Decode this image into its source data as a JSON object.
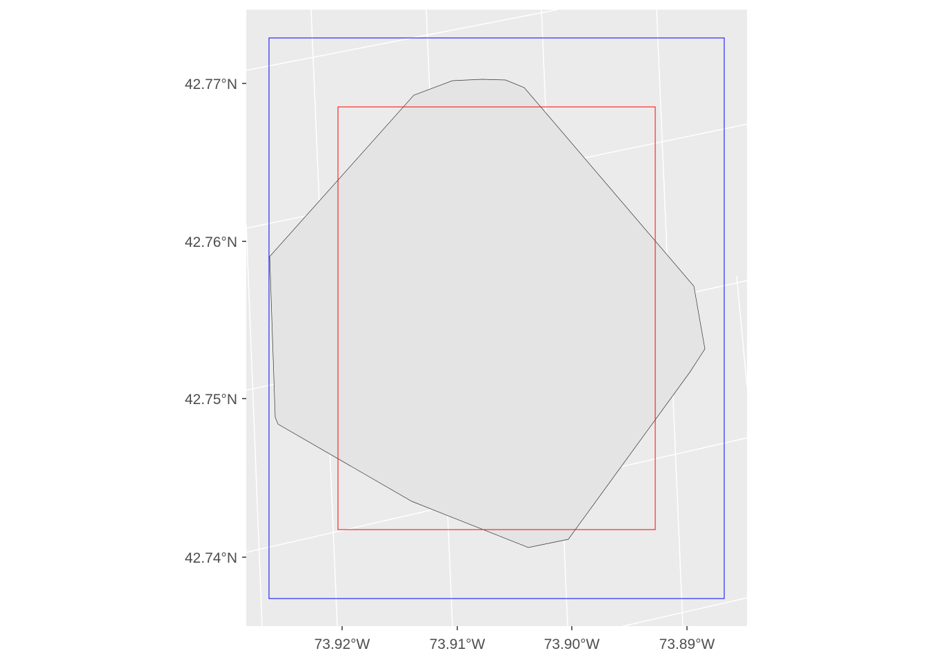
{
  "map": {
    "type": "sf-map",
    "panel_background": "#EBEBEB",
    "graticule_color": "#FFFFFF",
    "y_axis": {
      "ticks": [
        {
          "value": 42.77,
          "label": "42.77°N"
        },
        {
          "value": 42.76,
          "label": "42.76°N"
        },
        {
          "value": 42.75,
          "label": "42.75°N"
        },
        {
          "value": 42.74,
          "label": "42.74°N"
        }
      ]
    },
    "x_axis": {
      "ticks": [
        {
          "value": -73.92,
          "label": "73.92°W"
        },
        {
          "value": -73.91,
          "label": "73.91°W"
        },
        {
          "value": -73.9,
          "label": "73.90°W"
        },
        {
          "value": -73.89,
          "label": "73.89°W"
        }
      ]
    },
    "layers": [
      {
        "name": "polygon",
        "fill": "#E4E4E4",
        "stroke": "#333333"
      },
      {
        "name": "blue-bbox",
        "fill": "none",
        "stroke": "#0000FF"
      },
      {
        "name": "red-bbox",
        "fill": "none",
        "stroke": "#FF0000"
      }
    ]
  }
}
